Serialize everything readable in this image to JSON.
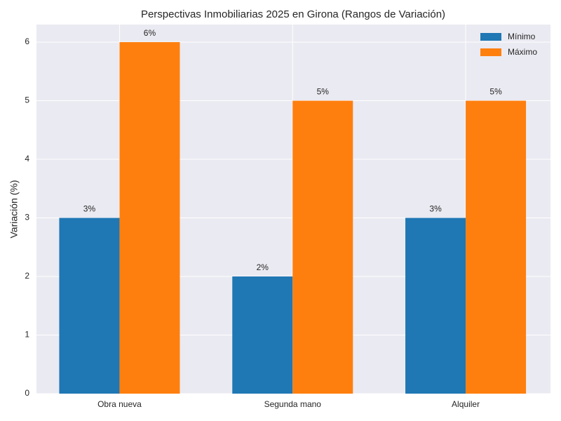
{
  "chart_data": {
    "type": "bar",
    "title": "Perspectivas Inmobiliarias 2025 en Girona (Rangos de Variación)",
    "y_label": "Variación (%)",
    "categories": [
      "Obra nueva",
      "Segunda mano",
      "Alquiler"
    ],
    "series": [
      {
        "name": "Mínimo",
        "color": "#1f77b4",
        "values": [
          3,
          2,
          3
        ],
        "value_labels": [
          "3%",
          "2%",
          "3%"
        ]
      },
      {
        "name": "Máximo",
        "color": "#ff7f0e",
        "values": [
          6,
          5,
          5
        ],
        "value_labels": [
          "6%",
          "5%",
          "5%"
        ]
      }
    ],
    "ylim": [
      0,
      6.3
    ],
    "yticks": [
      0,
      1,
      2,
      3,
      4,
      5,
      6
    ],
    "grid": true,
    "legend": "upper right"
  }
}
